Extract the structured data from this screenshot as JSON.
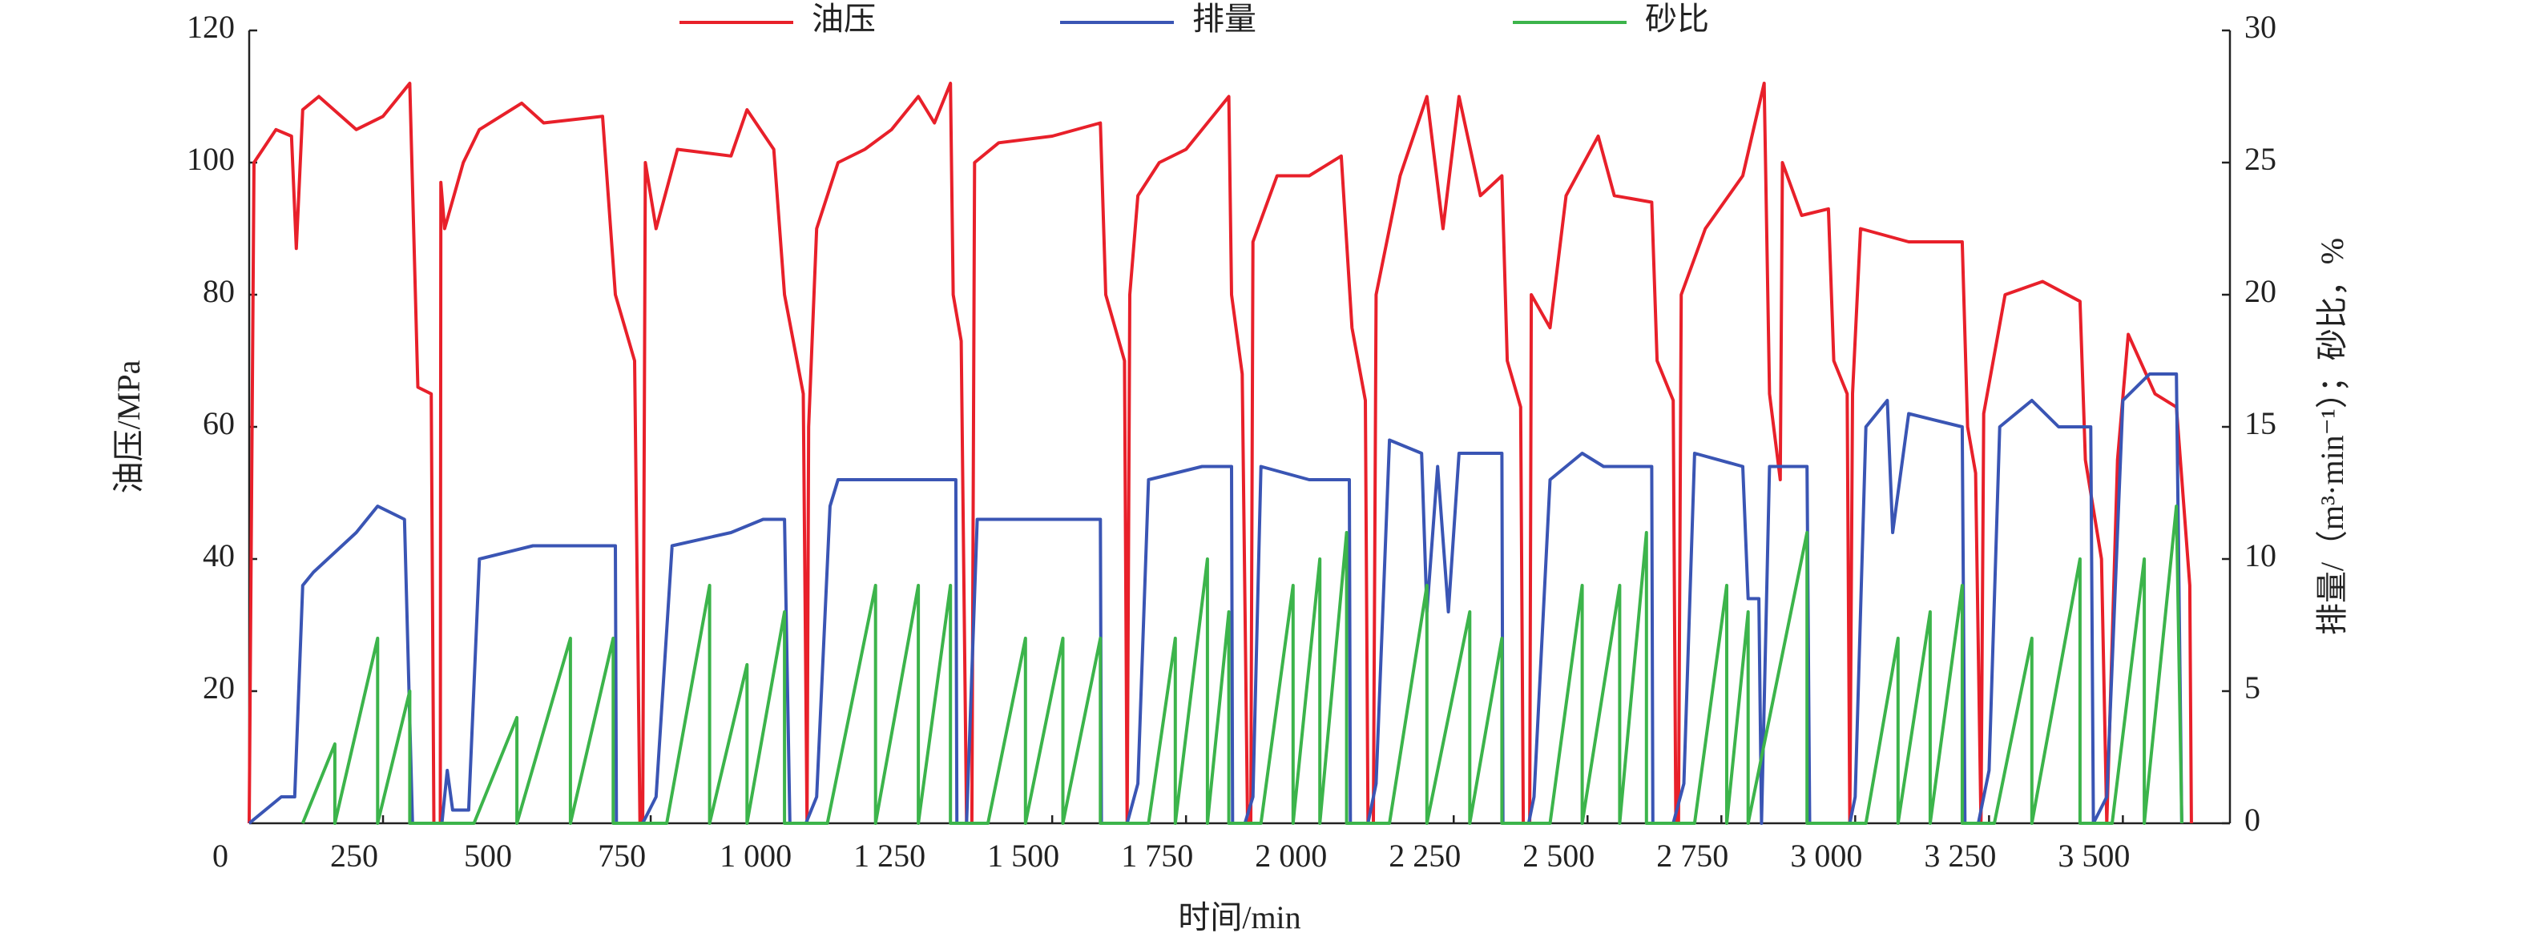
{
  "chart_data": {
    "type": "line",
    "x_label": "时间/min",
    "y_label": "油压/MPa",
    "y2_label": "排量/（m³·min⁻¹）；砂比，%",
    "xlim": [
      0,
      3700
    ],
    "xticks": [
      0,
      250,
      500,
      750,
      {
        "value": 1000,
        "label": "1 000"
      },
      {
        "value": 1250,
        "label": "1 250"
      },
      {
        "value": 1500,
        "label": "1 500"
      },
      {
        "value": 1750,
        "label": "1 750"
      },
      {
        "value": 2000,
        "label": "2 000"
      },
      {
        "value": 2250,
        "label": "2 250"
      },
      {
        "value": 2500,
        "label": "2 500"
      },
      {
        "value": 2750,
        "label": "2 750"
      },
      {
        "value": 3000,
        "label": "3 000"
      },
      {
        "value": 3250,
        "label": "3 250"
      },
      {
        "value": 3500,
        "label": "3 500"
      }
    ],
    "ylim": [
      0,
      120
    ],
    "yticks": [
      20,
      40,
      60,
      80,
      100,
      120
    ],
    "y2lim": [
      0,
      30
    ],
    "y2ticks": [
      0,
      5,
      10,
      15,
      20,
      25,
      30
    ],
    "series": [
      {
        "name": "油压",
        "color": "#e8202a",
        "x": [
          0,
          9,
          50,
          79,
          88,
          100,
          130,
          200,
          250,
          300,
          315,
          340,
          345,
          357,
          358,
          365,
          400,
          430,
          509,
          550,
          660,
          684,
          720,
          730,
          735,
          740,
          760,
          800,
          900,
          930,
          980,
          1000,
          1035,
          1042,
          1045,
          1060,
          1100,
          1150,
          1200,
          1250,
          1280,
          1310,
          1315,
          1330,
          1340,
          1350,
          1355,
          1400,
          1500,
          1590,
          1600,
          1635,
          1640,
          1645,
          1660,
          1700,
          1750,
          1830,
          1835,
          1855,
          1865,
          1871,
          1875,
          1920,
          1980,
          2040,
          2060,
          2085,
          2090,
          2100,
          2105,
          2150,
          2200,
          2230,
          2260,
          2300,
          2340,
          2350,
          2375,
          2380,
          2392,
          2395,
          2430,
          2460,
          2520,
          2550,
          2620,
          2630,
          2660,
          2665,
          2670,
          2675,
          2720,
          2790,
          2830,
          2840,
          2860,
          2864,
          2900,
          2950,
          2960,
          2985,
          2990,
          2995,
          3010,
          3100,
          3200,
          3210,
          3225,
          3235,
          3240,
          3280,
          3350,
          3420,
          3430,
          3460,
          3470,
          3490,
          3510,
          3560,
          3600,
          3625,
          3628
        ],
        "values": [
          0,
          100,
          105,
          104,
          87,
          108,
          110,
          105,
          107,
          112,
          66,
          65,
          0,
          0,
          97,
          90,
          100,
          105,
          109,
          106,
          107,
          80,
          70,
          0,
          0,
          100,
          90,
          102,
          101,
          108,
          102,
          80,
          65,
          0,
          60,
          90,
          100,
          102,
          105,
          110,
          106,
          112,
          80,
          73,
          0,
          0,
          100,
          103,
          104,
          106,
          80,
          70,
          0,
          80,
          95,
          100,
          102,
          110,
          80,
          68,
          0,
          0,
          88,
          98,
          98,
          101,
          75,
          64,
          0,
          0,
          80,
          98,
          110,
          90,
          110,
          95,
          98,
          70,
          63,
          0,
          0,
          80,
          75,
          95,
          104,
          95,
          94,
          70,
          64,
          0,
          0,
          80,
          90,
          98,
          112,
          65,
          52,
          100,
          92,
          93,
          70,
          65,
          0,
          65,
          90,
          88,
          88,
          60,
          53,
          0,
          62,
          80,
          82,
          79,
          55,
          40,
          0,
          55,
          74,
          65,
          63,
          36,
          0
        ]
      },
      {
        "name": "排量",
        "color": "#3a55b4",
        "axis": "y2",
        "x": [
          0,
          60,
          85,
          100,
          120,
          200,
          240,
          290,
          305,
          360,
          370,
          380,
          410,
          430,
          530,
          684,
          686,
          735,
          760,
          790,
          900,
          960,
          1000,
          1010,
          1040,
          1060,
          1085,
          1100,
          1320,
          1322,
          1340,
          1360,
          1590,
          1592,
          1640,
          1660,
          1680,
          1780,
          1835,
          1837,
          1860,
          1875,
          1890,
          1980,
          2055,
          2057,
          2090,
          2105,
          2130,
          2190,
          2200,
          2220,
          2240,
          2260,
          2340,
          2342,
          2390,
          2400,
          2430,
          2490,
          2530,
          2620,
          2622,
          2660,
          2680,
          2700,
          2790,
          2800,
          2820,
          2825,
          2840,
          2910,
          2915,
          2990,
          3000,
          3020,
          3060,
          3070,
          3100,
          3200,
          3205,
          3230,
          3250,
          3270,
          3330,
          3380,
          3440,
          3445,
          3470,
          3500,
          3550,
          3600,
          3610
        ],
        "values": [
          0,
          1,
          1,
          9,
          9.5,
          11,
          12,
          11.5,
          0,
          0,
          2,
          0.5,
          0.5,
          10,
          10.5,
          10.5,
          0,
          0,
          1,
          10.5,
          11,
          11.5,
          11.5,
          0,
          0,
          1,
          12,
          13,
          13,
          0,
          0,
          11.5,
          11.5,
          0,
          0,
          1.5,
          13,
          13.5,
          13.5,
          0,
          0,
          1,
          13.5,
          13,
          13,
          0,
          0,
          1.5,
          14.5,
          14,
          8,
          13.5,
          8,
          14,
          14,
          0,
          0,
          1,
          13,
          14,
          13.5,
          13.5,
          0,
          0,
          1.5,
          14,
          13.5,
          8.5,
          8.5,
          0,
          13.5,
          13.5,
          0,
          0,
          1,
          15,
          16,
          11,
          15.5,
          15,
          0,
          0,
          2,
          15,
          16,
          15,
          15,
          0,
          1,
          16,
          17,
          17,
          0
        ]
      },
      {
        "name": "砂比",
        "color": "#3cb44b",
        "axis": "y2",
        "x": [
          100,
          160,
          160,
          240,
          240,
          300,
          300,
          420,
          500,
          500,
          600,
          600,
          680,
          680,
          780,
          860,
          860,
          930,
          930,
          1000,
          1000,
          1080,
          1170,
          1170,
          1250,
          1250,
          1310,
          1310,
          1380,
          1450,
          1450,
          1520,
          1520,
          1590,
          1590,
          1680,
          1730,
          1730,
          1790,
          1790,
          1830,
          1830,
          1890,
          1950,
          1950,
          2000,
          2000,
          2050,
          2050,
          2130,
          2200,
          2200,
          2280,
          2280,
          2340,
          2340,
          2430,
          2490,
          2490,
          2560,
          2560,
          2610,
          2610,
          2700,
          2760,
          2760,
          2800,
          2800,
          2910,
          2910,
          3020,
          3080,
          3080,
          3140,
          3140,
          3200,
          3200,
          3260,
          3330,
          3330,
          3420,
          3420,
          3480,
          3540,
          3540,
          3600,
          3610
        ],
        "values": [
          0,
          3,
          0,
          7,
          0,
          5,
          0,
          0,
          4,
          0,
          7,
          0,
          7,
          0,
          0,
          9,
          0,
          6,
          0,
          8,
          0,
          0,
          9,
          0,
          9,
          0,
          9,
          0,
          0,
          7,
          0,
          7,
          0,
          7,
          0,
          0,
          7,
          0,
          10,
          0,
          8,
          0,
          0,
          9,
          0,
          10,
          0,
          11,
          0,
          0,
          9,
          0,
          8,
          0,
          7,
          0,
          0,
          9,
          0,
          9,
          0,
          11,
          0,
          0,
          9,
          0,
          8,
          0,
          11,
          0,
          0,
          7,
          0,
          8,
          0,
          9,
          0,
          0,
          7,
          0,
          10,
          0,
          0,
          10,
          0,
          12,
          0
        ]
      }
    ]
  }
}
